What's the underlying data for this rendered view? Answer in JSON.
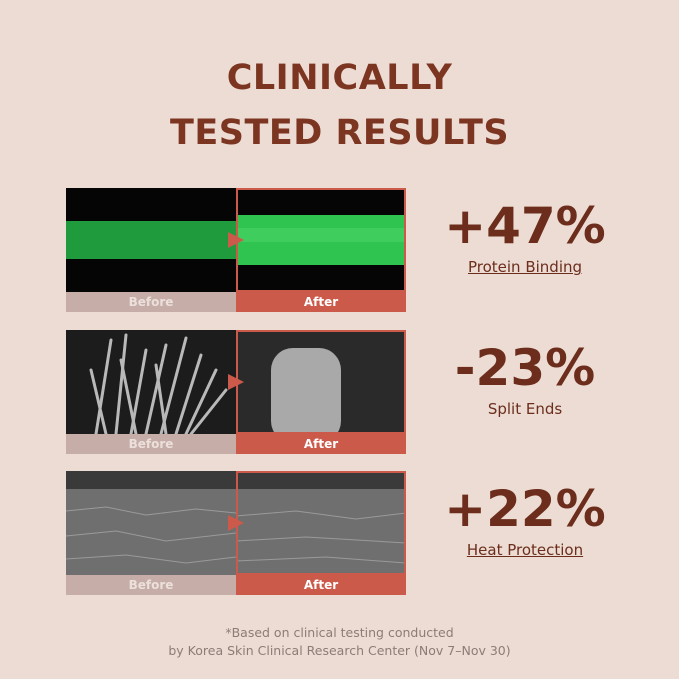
{
  "header": {
    "title_line1": "CLINICALLY",
    "title_line2": "TESTED RESULTS"
  },
  "rows": [
    {
      "before": "Before",
      "after": "After",
      "stat": "+47%",
      "label": "Protein Binding"
    },
    {
      "before": "Before",
      "after": "After",
      "stat": "-23%",
      "label": "Split Ends"
    },
    {
      "before": "Before",
      "after": "After",
      "stat": "+22%",
      "label": "Heat Protection"
    }
  ],
  "footnote": {
    "line1": "*Based on clinical testing conducted",
    "line2": "by Korea Skin Clinical Research Center (Nov 7–Nov 30)"
  }
}
